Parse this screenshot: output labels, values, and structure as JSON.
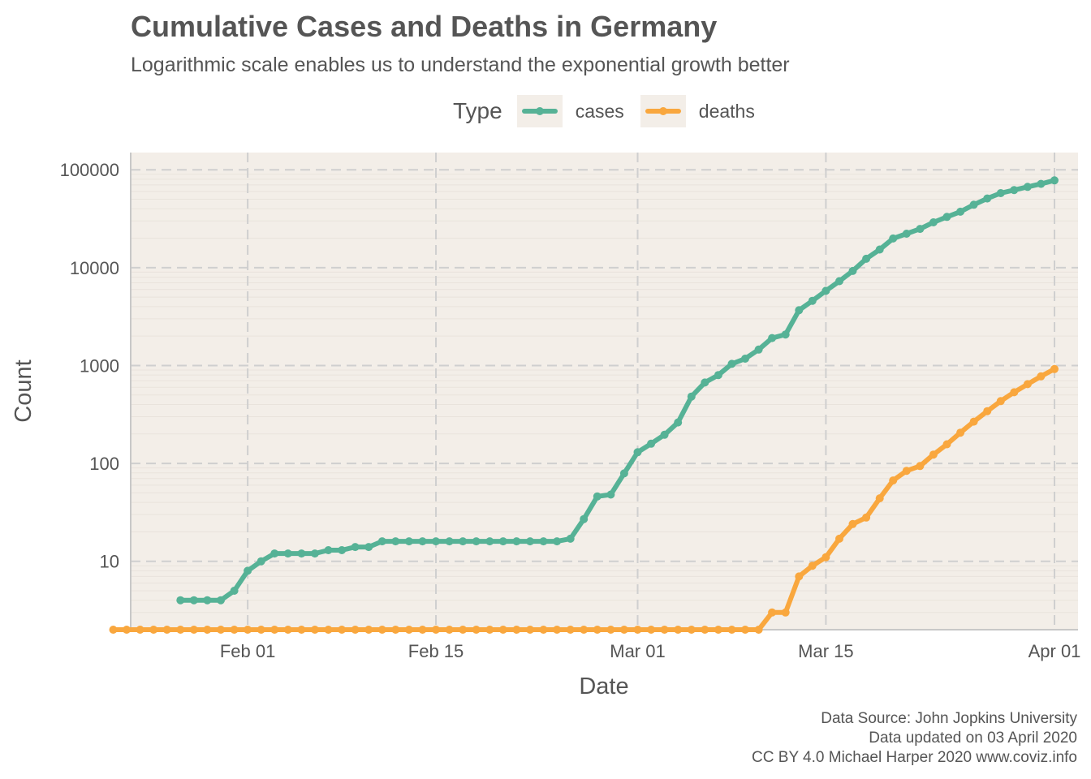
{
  "chart_data": {
    "type": "line",
    "title": "Cumulative Cases and Deaths in Germany",
    "subtitle": "Logarithmic scale enables us to understand the exponential growth better",
    "xlabel": "Date",
    "ylabel": "Count",
    "y_scale": "log10",
    "ylim": [
      2,
      150000
    ],
    "xlim": [
      "2020-01-22",
      "2020-04-02"
    ],
    "x_ticks": [
      "2020-02-01",
      "2020-02-15",
      "2020-03-01",
      "2020-03-15",
      "2020-04-01"
    ],
    "x_tick_labels": [
      "Feb 01",
      "Feb 15",
      "Mar 01",
      "Mar 15",
      "Apr 01"
    ],
    "y_ticks": [
      10,
      100,
      1000,
      10000,
      100000
    ],
    "y_tick_labels": [
      "10",
      "100",
      "1000",
      "10000",
      "100000"
    ],
    "grid": true,
    "legend": {
      "title": "Type",
      "position": "top"
    },
    "series": [
      {
        "name": "cases",
        "color": "#56b296",
        "points": [
          [
            "2020-01-27",
            4
          ],
          [
            "2020-01-28",
            4
          ],
          [
            "2020-01-29",
            4
          ],
          [
            "2020-01-30",
            4
          ],
          [
            "2020-01-31",
            5
          ],
          [
            "2020-02-01",
            8
          ],
          [
            "2020-02-02",
            10
          ],
          [
            "2020-02-03",
            12
          ],
          [
            "2020-02-04",
            12
          ],
          [
            "2020-02-05",
            12
          ],
          [
            "2020-02-06",
            12
          ],
          [
            "2020-02-07",
            13
          ],
          [
            "2020-02-08",
            13
          ],
          [
            "2020-02-09",
            14
          ],
          [
            "2020-02-10",
            14
          ],
          [
            "2020-02-11",
            16
          ],
          [
            "2020-02-12",
            16
          ],
          [
            "2020-02-13",
            16
          ],
          [
            "2020-02-14",
            16
          ],
          [
            "2020-02-15",
            16
          ],
          [
            "2020-02-16",
            16
          ],
          [
            "2020-02-17",
            16
          ],
          [
            "2020-02-18",
            16
          ],
          [
            "2020-02-19",
            16
          ],
          [
            "2020-02-20",
            16
          ],
          [
            "2020-02-21",
            16
          ],
          [
            "2020-02-22",
            16
          ],
          [
            "2020-02-23",
            16
          ],
          [
            "2020-02-24",
            16
          ],
          [
            "2020-02-25",
            17
          ],
          [
            "2020-02-26",
            27
          ],
          [
            "2020-02-27",
            46
          ],
          [
            "2020-02-28",
            48
          ],
          [
            "2020-02-29",
            79
          ],
          [
            "2020-03-01",
            130
          ],
          [
            "2020-03-02",
            159
          ],
          [
            "2020-03-03",
            196
          ],
          [
            "2020-03-04",
            262
          ],
          [
            "2020-03-05",
            482
          ],
          [
            "2020-03-06",
            670
          ],
          [
            "2020-03-07",
            799
          ],
          [
            "2020-03-08",
            1040
          ],
          [
            "2020-03-09",
            1176
          ],
          [
            "2020-03-10",
            1457
          ],
          [
            "2020-03-11",
            1908
          ],
          [
            "2020-03-12",
            2078
          ],
          [
            "2020-03-13",
            3675
          ],
          [
            "2020-03-14",
            4585
          ],
          [
            "2020-03-15",
            5795
          ],
          [
            "2020-03-16",
            7272
          ],
          [
            "2020-03-17",
            9257
          ],
          [
            "2020-03-18",
            12327
          ],
          [
            "2020-03-19",
            15320
          ],
          [
            "2020-03-20",
            19848
          ],
          [
            "2020-03-21",
            22213
          ],
          [
            "2020-03-22",
            24873
          ],
          [
            "2020-03-23",
            29056
          ],
          [
            "2020-03-24",
            32986
          ],
          [
            "2020-03-25",
            37323
          ],
          [
            "2020-03-26",
            43938
          ],
          [
            "2020-03-27",
            50871
          ],
          [
            "2020-03-28",
            57695
          ],
          [
            "2020-03-29",
            62095
          ],
          [
            "2020-03-30",
            66885
          ],
          [
            "2020-03-31",
            71808
          ],
          [
            "2020-04-01",
            77872
          ]
        ]
      },
      {
        "name": "deaths",
        "color": "#f9a73e",
        "points": [
          [
            "2020-01-22",
            2
          ],
          [
            "2020-01-23",
            2
          ],
          [
            "2020-01-24",
            2
          ],
          [
            "2020-01-25",
            2
          ],
          [
            "2020-01-26",
            2
          ],
          [
            "2020-01-27",
            2
          ],
          [
            "2020-01-28",
            2
          ],
          [
            "2020-01-29",
            2
          ],
          [
            "2020-01-30",
            2
          ],
          [
            "2020-01-31",
            2
          ],
          [
            "2020-02-01",
            2
          ],
          [
            "2020-02-02",
            2
          ],
          [
            "2020-02-03",
            2
          ],
          [
            "2020-02-04",
            2
          ],
          [
            "2020-02-05",
            2
          ],
          [
            "2020-02-06",
            2
          ],
          [
            "2020-02-07",
            2
          ],
          [
            "2020-02-08",
            2
          ],
          [
            "2020-02-09",
            2
          ],
          [
            "2020-02-10",
            2
          ],
          [
            "2020-02-11",
            2
          ],
          [
            "2020-02-12",
            2
          ],
          [
            "2020-02-13",
            2
          ],
          [
            "2020-02-14",
            2
          ],
          [
            "2020-02-15",
            2
          ],
          [
            "2020-02-16",
            2
          ],
          [
            "2020-02-17",
            2
          ],
          [
            "2020-02-18",
            2
          ],
          [
            "2020-02-19",
            2
          ],
          [
            "2020-02-20",
            2
          ],
          [
            "2020-02-21",
            2
          ],
          [
            "2020-02-22",
            2
          ],
          [
            "2020-02-23",
            2
          ],
          [
            "2020-02-24",
            2
          ],
          [
            "2020-02-25",
            2
          ],
          [
            "2020-02-26",
            2
          ],
          [
            "2020-02-27",
            2
          ],
          [
            "2020-02-28",
            2
          ],
          [
            "2020-02-29",
            2
          ],
          [
            "2020-03-01",
            2
          ],
          [
            "2020-03-02",
            2
          ],
          [
            "2020-03-03",
            2
          ],
          [
            "2020-03-04",
            2
          ],
          [
            "2020-03-05",
            2
          ],
          [
            "2020-03-06",
            2
          ],
          [
            "2020-03-07",
            2
          ],
          [
            "2020-03-08",
            2
          ],
          [
            "2020-03-09",
            2
          ],
          [
            "2020-03-10",
            2
          ],
          [
            "2020-03-11",
            3
          ],
          [
            "2020-03-12",
            3
          ],
          [
            "2020-03-13",
            7
          ],
          [
            "2020-03-14",
            9
          ],
          [
            "2020-03-15",
            11
          ],
          [
            "2020-03-16",
            17
          ],
          [
            "2020-03-17",
            24
          ],
          [
            "2020-03-18",
            28
          ],
          [
            "2020-03-19",
            44
          ],
          [
            "2020-03-20",
            67
          ],
          [
            "2020-03-21",
            84
          ],
          [
            "2020-03-22",
            94
          ],
          [
            "2020-03-23",
            123
          ],
          [
            "2020-03-24",
            157
          ],
          [
            "2020-03-25",
            206
          ],
          [
            "2020-03-26",
            267
          ],
          [
            "2020-03-27",
            342
          ],
          [
            "2020-03-28",
            433
          ],
          [
            "2020-03-29",
            533
          ],
          [
            "2020-03-30",
            645
          ],
          [
            "2020-03-31",
            775
          ],
          [
            "2020-04-01",
            920
          ]
        ]
      }
    ]
  },
  "caption": {
    "source": "Data Source: John Jopkins University",
    "updated": "Data updated on 03 April 2020",
    "license": "CC BY 4.0 Michael Harper 2020 www.coviz.info"
  }
}
